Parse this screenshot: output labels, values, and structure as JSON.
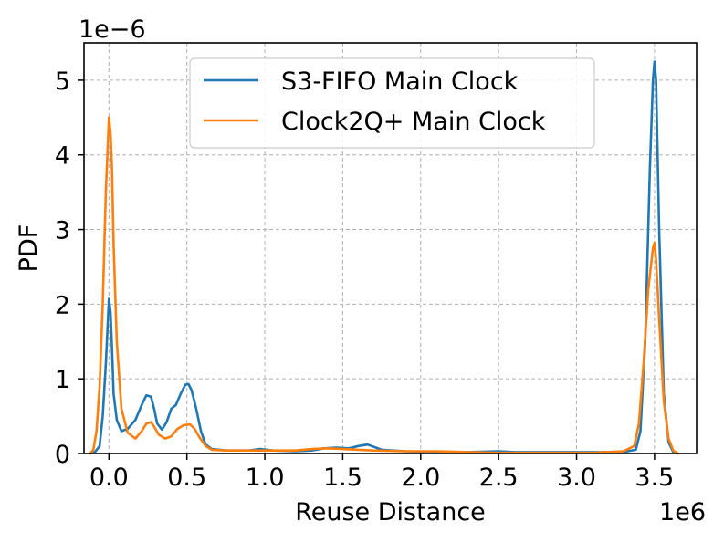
{
  "chart_data": {
    "type": "line",
    "xlabel": "Reuse Distance",
    "ylabel": "PDF",
    "x_offset_label": "1e6",
    "y_offset_label": "1e−6",
    "xlim": [
      -0.16,
      3.77
    ],
    "ylim": [
      0,
      5.5
    ],
    "xticks": [
      0.0,
      0.5,
      1.0,
      1.5,
      2.0,
      2.5,
      3.0,
      3.5
    ],
    "xtick_labels": [
      "0.0",
      "0.5",
      "1.0",
      "1.5",
      "2.0",
      "2.5",
      "3.0",
      "3.5"
    ],
    "yticks": [
      0,
      1,
      2,
      3,
      4,
      5
    ],
    "ytick_labels": [
      "0",
      "1",
      "2",
      "3",
      "4",
      "5"
    ],
    "grid": true,
    "legend_position": "top-center",
    "series": [
      {
        "name": "S3-FIFO Main Clock",
        "color": "#1f77b4",
        "x": [
          -0.12,
          -0.09,
          -0.06,
          -0.04,
          -0.02,
          0.0,
          0.01,
          0.02,
          0.03,
          0.05,
          0.08,
          0.12,
          0.17,
          0.21,
          0.24,
          0.27,
          0.29,
          0.31,
          0.34,
          0.37,
          0.4,
          0.43,
          0.46,
          0.49,
          0.51,
          0.53,
          0.56,
          0.59,
          0.62,
          0.66,
          0.75,
          0.9,
          0.97,
          1.05,
          1.2,
          1.3,
          1.38,
          1.46,
          1.54,
          1.6,
          1.66,
          1.75,
          1.9,
          2.1,
          2.3,
          2.5,
          2.6,
          2.8,
          3.0,
          3.2,
          3.3,
          3.38,
          3.41,
          3.44,
          3.47,
          3.49,
          3.5,
          3.51,
          3.53,
          3.56,
          3.59,
          3.62,
          3.65
        ],
        "y": [
          0.0,
          0.02,
          0.1,
          0.5,
          1.2,
          2.07,
          1.9,
          1.4,
          0.8,
          0.45,
          0.3,
          0.33,
          0.45,
          0.65,
          0.78,
          0.76,
          0.6,
          0.4,
          0.32,
          0.42,
          0.6,
          0.65,
          0.8,
          0.92,
          0.93,
          0.85,
          0.6,
          0.3,
          0.12,
          0.06,
          0.04,
          0.04,
          0.06,
          0.04,
          0.03,
          0.04,
          0.07,
          0.08,
          0.07,
          0.1,
          0.12,
          0.05,
          0.03,
          0.02,
          0.02,
          0.03,
          0.02,
          0.02,
          0.02,
          0.02,
          0.02,
          0.05,
          0.3,
          1.5,
          3.8,
          5.0,
          5.25,
          5.0,
          3.0,
          0.8,
          0.15,
          0.02,
          0.0
        ]
      },
      {
        "name": "Clock2Q+ Main Clock",
        "color": "#ff7f0e",
        "x": [
          -0.12,
          -0.1,
          -0.08,
          -0.06,
          -0.04,
          -0.02,
          0.0,
          0.01,
          0.02,
          0.03,
          0.05,
          0.08,
          0.12,
          0.17,
          0.21,
          0.24,
          0.27,
          0.29,
          0.32,
          0.36,
          0.4,
          0.44,
          0.48,
          0.52,
          0.55,
          0.58,
          0.62,
          0.66,
          0.75,
          0.9,
          1.05,
          1.2,
          1.3,
          1.4,
          1.5,
          1.6,
          1.7,
          1.9,
          2.1,
          2.3,
          2.5,
          2.7,
          2.9,
          3.1,
          3.3,
          3.37,
          3.4,
          3.43,
          3.46,
          3.49,
          3.5,
          3.51,
          3.53,
          3.56,
          3.59,
          3.62,
          3.65
        ],
        "y": [
          0.0,
          0.05,
          0.3,
          0.9,
          2.0,
          3.5,
          4.5,
          4.3,
          3.8,
          2.8,
          1.5,
          0.6,
          0.28,
          0.2,
          0.3,
          0.4,
          0.42,
          0.36,
          0.25,
          0.2,
          0.23,
          0.33,
          0.38,
          0.39,
          0.33,
          0.22,
          0.1,
          0.05,
          0.04,
          0.04,
          0.04,
          0.04,
          0.06,
          0.07,
          0.06,
          0.05,
          0.04,
          0.03,
          0.03,
          0.02,
          0.01,
          0.01,
          0.01,
          0.01,
          0.03,
          0.1,
          0.4,
          1.2,
          2.2,
          2.75,
          2.82,
          2.6,
          1.8,
          0.7,
          0.2,
          0.04,
          0.0
        ]
      }
    ]
  }
}
